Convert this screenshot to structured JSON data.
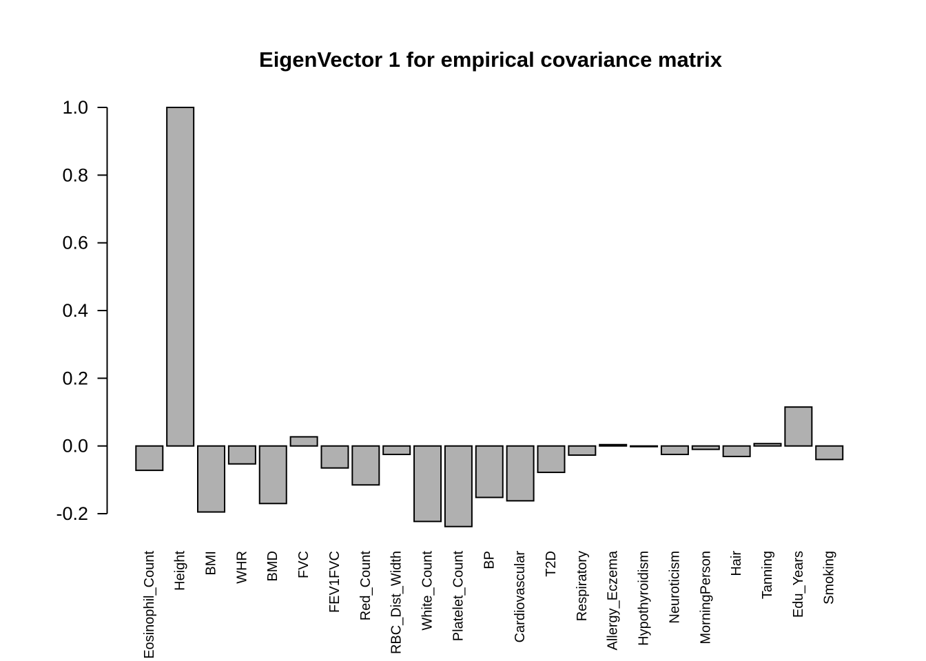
{
  "chart_data": {
    "type": "bar",
    "title": "EigenVector 1 for empirical covariance matrix",
    "xlabel": "",
    "ylabel": "",
    "categories": [
      "Eosinophil_Count",
      "Height",
      "BMI",
      "WHR",
      "BMD",
      "FVC",
      "FEV1FVC",
      "Red_Count",
      "RBC_Dist_Width",
      "White_Count",
      "Platelet_Count",
      "BP",
      "Cardiovascular",
      "T2D",
      "Respiratory",
      "Allergy_Eczema",
      "Hypothyroidism",
      "Neuroticism",
      "MorningPerson",
      "Hair",
      "Tanning",
      "Edu_Years",
      "Smoking"
    ],
    "values": [
      -0.072,
      1.0,
      -0.195,
      -0.053,
      -0.17,
      0.027,
      -0.065,
      -0.115,
      -0.025,
      -0.223,
      -0.238,
      -0.152,
      -0.162,
      -0.078,
      -0.027,
      0.004,
      -0.002,
      -0.025,
      -0.01,
      -0.031,
      0.007,
      0.115,
      -0.04
    ],
    "ylim": [
      -0.2,
      1.0
    ],
    "yticks": [
      1.0,
      0.8,
      0.6,
      0.4,
      0.2,
      0.0,
      -0.2
    ],
    "ytick_labels": [
      "1.0",
      "0.8",
      "0.6",
      "0.4",
      "0.2",
      "0.0",
      "-0.2"
    ],
    "grid": false,
    "legend_position": "none",
    "colors": {
      "bar_fill": "#b0b0b0",
      "bar_stroke": "#000000",
      "axis": "#000000",
      "background": "#ffffff"
    }
  }
}
